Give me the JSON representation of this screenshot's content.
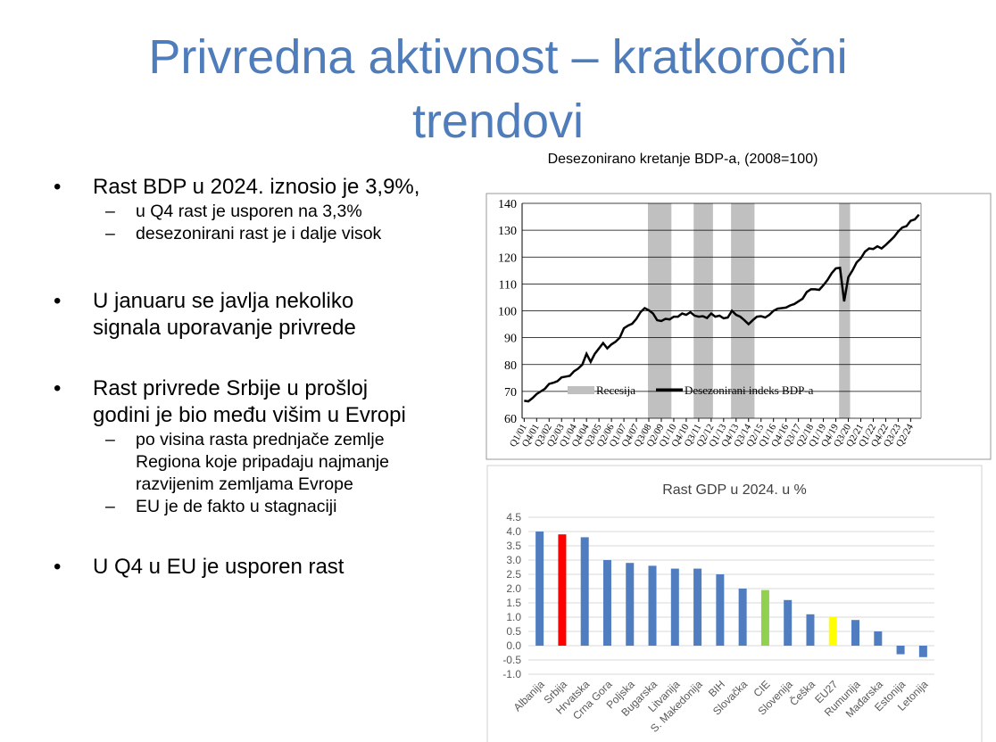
{
  "slide": {
    "title_line1": "Privredna aktivnost – kratkoročni",
    "title_line2": "trendovi",
    "bullets": [
      {
        "text": "Rast BDP u 2024. iznosio je 3,9%,",
        "sub": [
          "u Q4 rast je usporen na 3,3%",
          "desezonirani rast je i dalje visok"
        ]
      },
      {
        "text_lines": [
          "U januaru se javlja nekoliko",
          "signala uporavanje privrede"
        ]
      },
      {
        "text_lines": [
          "Rast privrede Srbije u prošloj",
          "godini je bio među višim u Evropi"
        ],
        "sub_lines": [
          [
            "po visina rasta prednjače zemlje",
            "Regiona koje pripadaju najmanje",
            "razvijenim zemljama Evrope"
          ],
          [
            "EU je de fakto u stagnaciji"
          ]
        ]
      },
      {
        "text": "U Q4 u EU je usporen rast"
      }
    ],
    "bullet_glyph": "•",
    "dash_glyph": "–"
  },
  "chart_data": [
    {
      "type": "line",
      "title": "Desezonirano kretanje BDP-a, (2008=100)",
      "ylim": [
        60,
        140
      ],
      "yticks": [
        "60",
        "70",
        "80",
        "90",
        "100",
        "110",
        "120",
        "130",
        "140"
      ],
      "xtick_labels": [
        "Q1/01",
        "Q4/01",
        "Q3/02",
        "Q2/03",
        "Q1/04",
        "Q4/04",
        "Q3/05",
        "Q2/06",
        "Q1/07",
        "Q4/07",
        "Q3/08",
        "Q2/09",
        "Q1/10",
        "Q4/10",
        "Q3/11",
        "Q2/12",
        "Q1/13",
        "Q4/13",
        "Q3/14",
        "Q2/15",
        "Q1/16",
        "Q4/16",
        "Q3/17",
        "Q2/18",
        "Q1/19",
        "Q4/19",
        "Q3/20",
        "Q2/21",
        "Q1/22",
        "Q4/22",
        "Q3/23",
        "Q2/24"
      ],
      "xtick_every_quarters": 3,
      "legend": [
        "Recesija",
        "Desezonirani indeks BDP-a"
      ],
      "legend_placement": "bottom-center",
      "colors": {
        "line": "#000000",
        "recession": "#c0c0c0"
      },
      "recession_quarter_index_ranges": [
        [
          30,
          35
        ],
        [
          41,
          45
        ],
        [
          50,
          55
        ],
        [
          76,
          78
        ]
      ],
      "series": [
        {
          "name": "Desezonirani indeks BDP-a",
          "values": [
            66.5,
            66.3,
            67.5,
            69,
            70,
            71,
            72.8,
            73.2,
            73.8,
            75.2,
            75.5,
            75.8,
            77.5,
            78.5,
            80,
            84,
            81,
            84,
            86,
            88,
            86,
            87.5,
            88.5,
            90,
            93.5,
            94.5,
            95.2,
            97,
            99.5,
            101,
            100.2,
            99,
            96.5,
            96.2,
            97,
            96.8,
            97.8,
            97.8,
            99,
            98.5,
            99.5,
            98.2,
            97.8,
            98,
            97.3,
            99,
            97.8,
            98.2,
            97.2,
            97.5,
            100,
            98.5,
            97.8,
            96.5,
            95,
            96.5,
            97.8,
            98,
            97.5,
            98.5,
            100,
            100.8,
            101,
            101.2,
            102,
            102.5,
            103.5,
            104.5,
            107,
            108,
            108,
            107.8,
            109.5,
            111.5,
            114,
            115.8,
            116,
            103.5,
            112.5,
            115,
            118,
            119.5,
            122,
            123.2,
            123,
            124,
            123.2,
            124.5,
            126,
            127.5,
            129.5,
            131,
            131.5,
            133.5,
            134,
            135.8
          ]
        }
      ]
    },
    {
      "type": "bar",
      "title": "Rast GDP u 2024. u %",
      "ylim": [
        -1.0,
        4.5
      ],
      "yticks": [
        "-1.0",
        "-0.5",
        "0.0",
        "0.5",
        "1.0",
        "1.5",
        "2.0",
        "2.5",
        "3.0",
        "3.5",
        "4.0",
        "4.5"
      ],
      "categories": [
        "Albanija",
        "Srbija",
        "Hrvatska",
        "Crna Gora",
        "Poljska",
        "Bugarska",
        "Litvanija",
        "S. Makedonija",
        "BIH",
        "Slovačka",
        "CIE",
        "Slovenija",
        "Češka",
        "EU27",
        "Rumunija",
        "Mađarska",
        "Estonija",
        "Letonija"
      ],
      "values": [
        4.0,
        3.9,
        3.8,
        3.0,
        2.9,
        2.8,
        2.7,
        2.7,
        2.5,
        2.0,
        1.95,
        1.6,
        1.1,
        1.0,
        0.9,
        0.5,
        -0.3,
        -0.4
      ],
      "colors": [
        "#4f7dc0",
        "#ff0000",
        "#4f7dc0",
        "#4f7dc0",
        "#4f7dc0",
        "#4f7dc0",
        "#4f7dc0",
        "#4f7dc0",
        "#4f7dc0",
        "#4f7dc0",
        "#92d050",
        "#4f7dc0",
        "#4f7dc0",
        "#ffff00",
        "#4f7dc0",
        "#4f7dc0",
        "#4f7dc0",
        "#4f7dc0"
      ]
    }
  ]
}
